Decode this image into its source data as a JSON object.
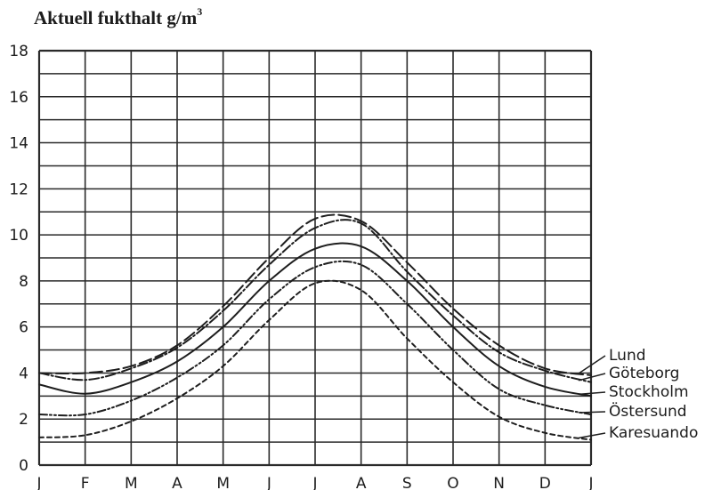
{
  "chart_data": {
    "type": "line",
    "title": "Aktuell fukthalt g/m",
    "title_superscript": "3",
    "xlabel": "",
    "ylabel": "",
    "x": [
      "J",
      "F",
      "M",
      "A",
      "M",
      "J",
      "J",
      "A",
      "S",
      "O",
      "N",
      "D",
      "J"
    ],
    "ylim": [
      0,
      18
    ],
    "yticks": [
      0,
      2,
      4,
      6,
      8,
      10,
      12,
      14,
      16,
      18
    ],
    "grid": true,
    "legend_placement": "right",
    "series": [
      {
        "name": "Lund",
        "values": [
          4.0,
          4.0,
          4.3,
          5.2,
          6.9,
          9.0,
          10.7,
          10.6,
          8.8,
          6.8,
          5.2,
          4.2,
          3.9
        ]
      },
      {
        "name": "Göteborg",
        "values": [
          4.0,
          3.7,
          4.2,
          5.1,
          6.7,
          8.7,
          10.3,
          10.5,
          8.4,
          6.5,
          4.9,
          4.1,
          3.6
        ]
      },
      {
        "name": "Stockholm",
        "values": [
          3.5,
          3.1,
          3.6,
          4.5,
          6.0,
          8.0,
          9.4,
          9.5,
          8.0,
          6.0,
          4.3,
          3.4,
          3.0
        ]
      },
      {
        "name": "Östersund",
        "values": [
          2.2,
          2.2,
          2.8,
          3.8,
          5.2,
          7.2,
          8.6,
          8.7,
          7.0,
          5.0,
          3.3,
          2.6,
          2.2
        ]
      },
      {
        "name": "Karesuando",
        "values": [
          1.2,
          1.3,
          1.9,
          2.9,
          4.3,
          6.3,
          7.9,
          7.6,
          5.5,
          3.6,
          2.1,
          1.4,
          1.1
        ]
      }
    ]
  }
}
